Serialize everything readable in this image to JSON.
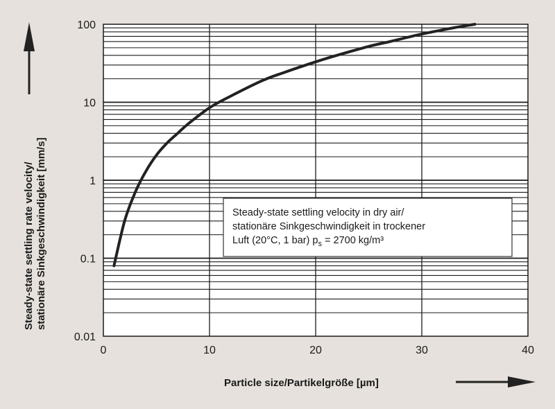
{
  "chart_data": {
    "type": "line",
    "xlabel": "Particle size/Partikelgröße [µm]",
    "ylabel_lines": [
      "Steady-state settling rate velocity/",
      "stationäre Sinkgeschwindigkeit [mm/s]"
    ],
    "xlim": [
      0,
      40
    ],
    "ylim": [
      0.01,
      100
    ],
    "y_scale": "log",
    "x_ticks": [
      0,
      10,
      20,
      30,
      40
    ],
    "x_tick_labels": [
      "0",
      "10",
      "20",
      "30",
      "40"
    ],
    "y_ticks": [
      0.01,
      0.1,
      1,
      10,
      100
    ],
    "y_tick_labels": [
      "0.01",
      "0.1",
      "1",
      "10",
      "100"
    ],
    "grid": {
      "horizontal": true,
      "vertical": true
    },
    "series": [
      {
        "x": [
          1,
          2,
          3,
          4,
          5,
          6,
          7,
          8,
          10,
          12,
          15,
          17,
          20,
          22,
          25,
          27,
          30,
          33,
          35
        ],
        "y": [
          0.08,
          0.3,
          0.7,
          1.3,
          2.1,
          3.0,
          4.0,
          5.3,
          8.5,
          12,
          19,
          24,
          33,
          40,
          52,
          60,
          75,
          90,
          100
        ]
      }
    ],
    "annotation": {
      "line1": "Steady-state settling velocity in dry air/",
      "line2": "stationäre Sinkgeschwindigkeit in trockener",
      "line3_prefix": "Luft (20°C, 1 bar) p",
      "line3_subscript": "s",
      "line3_suffix": " = 2700 kg/m³"
    },
    "colors": {
      "background": "#e6e1dc",
      "plot_background": "#ffffff",
      "curve": "#222222",
      "grid": "#1a1a1a",
      "arrow": "#222222"
    }
  }
}
